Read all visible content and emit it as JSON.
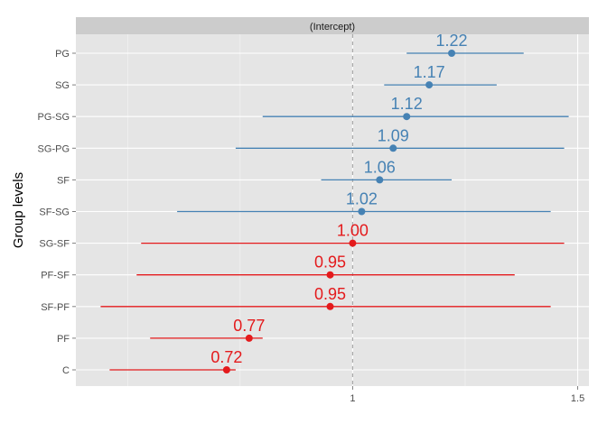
{
  "chart_data": {
    "type": "scatter",
    "panel_title": "(Intercept)",
    "ylabel": "Group levels",
    "xlabel": "",
    "x_ticks": [
      "1",
      "1.5"
    ],
    "x_tick_values": [
      1,
      1.5
    ],
    "xlim": [
      0.385,
      1.525
    ],
    "grid": true,
    "reference_line": 1,
    "colors": {
      "above": "#4682b4",
      "below": "#e41a1c",
      "panel_bg": "#e5e5e5",
      "strip_bg": "#cccccc",
      "ref_line": "#aaaaaa"
    },
    "points": [
      {
        "label": "PG",
        "estimate": 1.22,
        "lower": 1.12,
        "upper": 1.38,
        "value_label": "1.22",
        "group": "above"
      },
      {
        "label": "SG",
        "estimate": 1.17,
        "lower": 1.07,
        "upper": 1.32,
        "value_label": "1.17",
        "group": "above"
      },
      {
        "label": "PG-SG",
        "estimate": 1.12,
        "lower": 0.8,
        "upper": 1.48,
        "value_label": "1.12",
        "group": "above"
      },
      {
        "label": "SG-PG",
        "estimate": 1.09,
        "lower": 0.74,
        "upper": 1.47,
        "value_label": "1.09",
        "group": "above"
      },
      {
        "label": "SF",
        "estimate": 1.06,
        "lower": 0.93,
        "upper": 1.22,
        "value_label": "1.06",
        "group": "above"
      },
      {
        "label": "SF-SG",
        "estimate": 1.02,
        "lower": 0.61,
        "upper": 1.44,
        "value_label": "1.02",
        "group": "above"
      },
      {
        "label": "SG-SF",
        "estimate": 1.0,
        "lower": 0.53,
        "upper": 1.47,
        "value_label": "1.00",
        "group": "below"
      },
      {
        "label": "PF-SF",
        "estimate": 0.95,
        "lower": 0.52,
        "upper": 1.36,
        "value_label": "0.95",
        "group": "below"
      },
      {
        "label": "SF-PF",
        "estimate": 0.95,
        "lower": 0.44,
        "upper": 1.44,
        "value_label": "0.95",
        "group": "below"
      },
      {
        "label": "PF",
        "estimate": 0.77,
        "lower": 0.55,
        "upper": 0.8,
        "value_label": "0.77",
        "group": "below"
      },
      {
        "label": "C",
        "estimate": 0.72,
        "lower": 0.46,
        "upper": 0.74,
        "value_label": "0.72",
        "group": "below"
      }
    ]
  }
}
